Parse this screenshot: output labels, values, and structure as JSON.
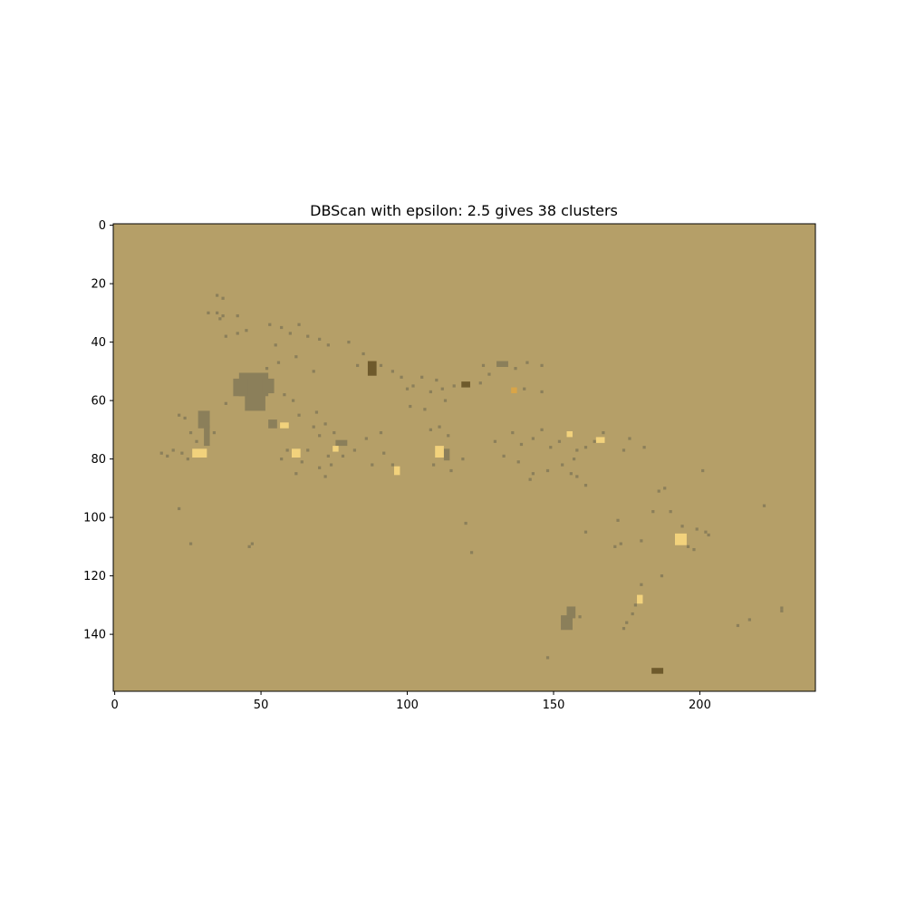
{
  "chart_data": {
    "type": "heatmap",
    "title": "DBScan with epsilon: 2.5 gives 38 clusters",
    "xlabel": "",
    "ylabel": "",
    "image_width": 240,
    "image_height": 160,
    "xlim": [
      -0.5,
      239.5
    ],
    "ylim": [
      159.5,
      -0.5
    ],
    "y_axis_inverted": true,
    "grid": false,
    "x_ticks": [
      0,
      50,
      100,
      150,
      200
    ],
    "x_tick_labels": [
      "0",
      "50",
      "100",
      "150",
      "200"
    ],
    "y_ticks": [
      0,
      20,
      40,
      60,
      80,
      100,
      120,
      140
    ],
    "y_tick_labels": [
      "0",
      "20",
      "40",
      "60",
      "80",
      "100",
      "120",
      "140"
    ],
    "colors": {
      "background": "#b59f68",
      "noise": "#8b7f5a",
      "cluster_light": "#f2d27c",
      "cluster_dark": "#6e5a2c",
      "cluster_orange": "#d9a548"
    },
    "regions": [
      {
        "x": [
          43,
          52
        ],
        "y": [
          51,
          58
        ],
        "cls": "noise"
      },
      {
        "x": [
          45,
          51
        ],
        "y": [
          57,
          63
        ],
        "cls": "noise"
      },
      {
        "x": [
          41,
          45
        ],
        "y": [
          53,
          58
        ],
        "cls": "noise"
      },
      {
        "x": [
          51,
          54
        ],
        "y": [
          53,
          57
        ],
        "cls": "noise"
      },
      {
        "x": [
          29,
          32
        ],
        "y": [
          64,
          69
        ],
        "cls": "noise"
      },
      {
        "x": [
          31,
          32
        ],
        "y": [
          69,
          75
        ],
        "cls": "noise"
      },
      {
        "x": [
          153,
          156
        ],
        "y": [
          134,
          138
        ],
        "cls": "noise"
      },
      {
        "x": [
          155,
          157
        ],
        "y": [
          131,
          134
        ],
        "cls": "noise"
      },
      {
        "x": [
          131,
          134
        ],
        "y": [
          47,
          48
        ],
        "cls": "noise"
      },
      {
        "x": [
          113,
          114
        ],
        "y": [
          77,
          80
        ],
        "cls": "noise"
      },
      {
        "x": [
          76,
          79
        ],
        "y": [
          74,
          75
        ],
        "cls": "noise"
      },
      {
        "x": [
          53,
          55
        ],
        "y": [
          67,
          69
        ],
        "cls": "noise"
      },
      {
        "x": [
          57,
          59
        ],
        "y": [
          68,
          69
        ],
        "cls": "light"
      },
      {
        "x": [
          27,
          31
        ],
        "y": [
          77,
          79
        ],
        "cls": "light"
      },
      {
        "x": [
          61,
          63
        ],
        "y": [
          77,
          79
        ],
        "cls": "light"
      },
      {
        "x": [
          75,
          76
        ],
        "y": [
          76,
          77
        ],
        "cls": "light"
      },
      {
        "x": [
          110,
          112
        ],
        "y": [
          76,
          79
        ],
        "cls": "light"
      },
      {
        "x": [
          192,
          195
        ],
        "y": [
          106,
          109
        ],
        "cls": "light"
      },
      {
        "x": [
          165,
          167
        ],
        "y": [
          73,
          74
        ],
        "cls": "light"
      },
      {
        "x": [
          96,
          97
        ],
        "y": [
          83,
          85
        ],
        "cls": "light"
      },
      {
        "x": [
          87,
          89
        ],
        "y": [
          47,
          51
        ],
        "cls": "dark"
      },
      {
        "x": [
          184,
          187
        ],
        "y": [
          152,
          153
        ],
        "cls": "dark"
      },
      {
        "x": [
          119,
          121
        ],
        "y": [
          54,
          55
        ],
        "cls": "dark"
      },
      {
        "x": [
          136,
          137
        ],
        "y": [
          56,
          57
        ],
        "cls": "orange"
      },
      {
        "x": [
          155,
          156
        ],
        "y": [
          71,
          72
        ],
        "cls": "light"
      },
      {
        "x": [
          179,
          180
        ],
        "y": [
          127,
          129
        ],
        "cls": "light"
      }
    ],
    "pixels": [
      [
        35,
        24,
        "noise"
      ],
      [
        37,
        25,
        "noise"
      ],
      [
        32,
        30,
        "noise"
      ],
      [
        35,
        30,
        "noise"
      ],
      [
        37,
        31,
        "noise"
      ],
      [
        42,
        31,
        "noise"
      ],
      [
        36,
        32,
        "noise"
      ],
      [
        38,
        38,
        "noise"
      ],
      [
        42,
        37,
        "noise"
      ],
      [
        45,
        36,
        "noise"
      ],
      [
        53,
        34,
        "noise"
      ],
      [
        57,
        35,
        "noise"
      ],
      [
        60,
        37,
        "noise"
      ],
      [
        63,
        34,
        "noise"
      ],
      [
        66,
        38,
        "noise"
      ],
      [
        70,
        39,
        "noise"
      ],
      [
        73,
        41,
        "noise"
      ],
      [
        55,
        41,
        "noise"
      ],
      [
        56,
        47,
        "noise"
      ],
      [
        52,
        49,
        "noise"
      ],
      [
        62,
        45,
        "noise"
      ],
      [
        68,
        50,
        "noise"
      ],
      [
        80,
        40,
        "noise"
      ],
      [
        85,
        44,
        "noise"
      ],
      [
        83,
        48,
        "noise"
      ],
      [
        91,
        48,
        "noise"
      ],
      [
        95,
        50,
        "noise"
      ],
      [
        98,
        52,
        "noise"
      ],
      [
        102,
        55,
        "noise"
      ],
      [
        108,
        57,
        "noise"
      ],
      [
        110,
        53,
        "noise"
      ],
      [
        112,
        56,
        "noise"
      ],
      [
        116,
        55,
        "noise"
      ],
      [
        126,
        48,
        "noise"
      ],
      [
        128,
        51,
        "noise"
      ],
      [
        137,
        49,
        "noise"
      ],
      [
        141,
        47,
        "noise"
      ],
      [
        146,
        48,
        "noise"
      ],
      [
        140,
        56,
        "noise"
      ],
      [
        146,
        57,
        "noise"
      ],
      [
        125,
        54,
        "noise"
      ],
      [
        105,
        52,
        "noise"
      ],
      [
        100,
        56,
        "noise"
      ],
      [
        113,
        60,
        "noise"
      ],
      [
        101,
        62,
        "noise"
      ],
      [
        106,
        63,
        "noise"
      ],
      [
        58,
        58,
        "noise"
      ],
      [
        61,
        60,
        "noise"
      ],
      [
        63,
        65,
        "noise"
      ],
      [
        69,
        64,
        "noise"
      ],
      [
        68,
        69,
        "noise"
      ],
      [
        72,
        68,
        "noise"
      ],
      [
        75,
        71,
        "noise"
      ],
      [
        70,
        72,
        "noise"
      ],
      [
        66,
        77,
        "noise"
      ],
      [
        64,
        81,
        "noise"
      ],
      [
        70,
        83,
        "noise"
      ],
      [
        72,
        86,
        "noise"
      ],
      [
        74,
        82,
        "noise"
      ],
      [
        73,
        79,
        "noise"
      ],
      [
        78,
        79,
        "noise"
      ],
      [
        82,
        77,
        "noise"
      ],
      [
        86,
        73,
        "noise"
      ],
      [
        91,
        71,
        "noise"
      ],
      [
        92,
        78,
        "noise"
      ],
      [
        95,
        82,
        "noise"
      ],
      [
        88,
        82,
        "noise"
      ],
      [
        108,
        70,
        "noise"
      ],
      [
        111,
        69,
        "noise"
      ],
      [
        114,
        72,
        "noise"
      ],
      [
        109,
        82,
        "noise"
      ],
      [
        115,
        84,
        "noise"
      ],
      [
        119,
        80,
        "noise"
      ],
      [
        130,
        74,
        "noise"
      ],
      [
        133,
        79,
        "noise"
      ],
      [
        136,
        71,
        "noise"
      ],
      [
        139,
        75,
        "noise"
      ],
      [
        143,
        73,
        "noise"
      ],
      [
        146,
        70,
        "noise"
      ],
      [
        149,
        76,
        "noise"
      ],
      [
        152,
        74,
        "noise"
      ],
      [
        158,
        77,
        "noise"
      ],
      [
        161,
        76,
        "noise"
      ],
      [
        164,
        74,
        "noise"
      ],
      [
        167,
        71,
        "noise"
      ],
      [
        157,
        80,
        "noise"
      ],
      [
        153,
        82,
        "noise"
      ],
      [
        148,
        84,
        "noise"
      ],
      [
        143,
        85,
        "noise"
      ],
      [
        142,
        87,
        "noise"
      ],
      [
        138,
        81,
        "noise"
      ],
      [
        156,
        85,
        "noise"
      ],
      [
        158,
        86,
        "noise"
      ],
      [
        161,
        89,
        "noise"
      ],
      [
        174,
        77,
        "noise"
      ],
      [
        176,
        73,
        "noise"
      ],
      [
        181,
        76,
        "noise"
      ],
      [
        201,
        84,
        "noise"
      ],
      [
        186,
        91,
        "noise"
      ],
      [
        188,
        90,
        "noise"
      ],
      [
        184,
        98,
        "noise"
      ],
      [
        190,
        98,
        "noise"
      ],
      [
        194,
        103,
        "noise"
      ],
      [
        199,
        104,
        "noise"
      ],
      [
        203,
        106,
        "noise"
      ],
      [
        222,
        96,
        "noise"
      ],
      [
        202,
        105,
        "noise"
      ],
      [
        198,
        111,
        "noise"
      ],
      [
        196,
        110,
        "noise"
      ],
      [
        172,
        101,
        "noise"
      ],
      [
        171,
        110,
        "noise"
      ],
      [
        173,
        109,
        "noise"
      ],
      [
        180,
        108,
        "noise"
      ],
      [
        187,
        120,
        "noise"
      ],
      [
        180,
        123,
        "noise"
      ],
      [
        178,
        130,
        "noise"
      ],
      [
        177,
        133,
        "noise"
      ],
      [
        175,
        136,
        "noise"
      ],
      [
        174,
        138,
        "noise"
      ],
      [
        159,
        134,
        "noise"
      ],
      [
        161,
        105,
        "noise"
      ],
      [
        148,
        148,
        "noise"
      ],
      [
        122,
        112,
        "noise"
      ],
      [
        46,
        110,
        "noise"
      ],
      [
        47,
        109,
        "noise"
      ],
      [
        26,
        109,
        "noise"
      ],
      [
        22,
        97,
        "noise"
      ],
      [
        16,
        78,
        "noise"
      ],
      [
        18,
        79,
        "noise"
      ],
      [
        20,
        77,
        "noise"
      ],
      [
        23,
        78,
        "noise"
      ],
      [
        25,
        80,
        "noise"
      ],
      [
        28,
        74,
        "noise"
      ],
      [
        26,
        71,
        "noise"
      ],
      [
        22,
        65,
        "noise"
      ],
      [
        24,
        66,
        "noise"
      ],
      [
        34,
        71,
        "noise"
      ],
      [
        38,
        61,
        "noise"
      ],
      [
        217,
        135,
        "noise"
      ],
      [
        228,
        131,
        "noise"
      ],
      [
        228,
        132,
        "noise"
      ],
      [
        213,
        137,
        "noise"
      ],
      [
        62,
        85,
        "noise"
      ],
      [
        57,
        80,
        "noise"
      ],
      [
        59,
        77,
        "noise"
      ],
      [
        120,
        102,
        "noise"
      ]
    ]
  }
}
